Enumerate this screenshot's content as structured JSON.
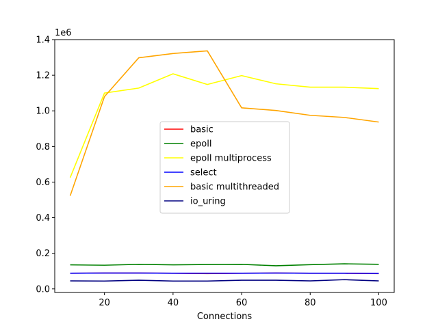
{
  "chart_data": {
    "type": "line",
    "title": "",
    "xlabel": "Connections",
    "ylabel": "",
    "y_offset_label": "1e6",
    "xlim": [
      5.5,
      104.5
    ],
    "ylim": [
      -20000,
      1400000
    ],
    "x_ticks": [
      20,
      40,
      60,
      80,
      100
    ],
    "x_tick_labels": [
      "20",
      "40",
      "60",
      "80",
      "100"
    ],
    "y_ticks": [
      0,
      200000,
      400000,
      600000,
      800000,
      1000000,
      1200000,
      1400000
    ],
    "y_tick_labels": [
      "0.0",
      "0.2",
      "0.4",
      "0.6",
      "0.8",
      "1.0",
      "1.2",
      "1.4"
    ],
    "grid": false,
    "legend_position": "center",
    "x": [
      10,
      20,
      30,
      40,
      50,
      60,
      70,
      80,
      90,
      100
    ],
    "series": [
      {
        "name": "basic",
        "color": "#ff0000",
        "values": [
          88000,
          89000,
          89000,
          88000,
          86000,
          88000,
          89000,
          88000,
          88000,
          86000
        ]
      },
      {
        "name": "epoll",
        "color": "#008000",
        "values": [
          135000,
          133000,
          138000,
          135000,
          137000,
          138000,
          130000,
          136000,
          141000,
          138000
        ]
      },
      {
        "name": "epoll multiprocess",
        "color": "#ffff00",
        "values": [
          625000,
          1100000,
          1128000,
          1208000,
          1148000,
          1198000,
          1152000,
          1133000,
          1133000,
          1125000
        ]
      },
      {
        "name": "select",
        "color": "#0000ff",
        "values": [
          88000,
          89000,
          89000,
          88000,
          88000,
          88000,
          89000,
          88000,
          88000,
          87000
        ]
      },
      {
        "name": "basic multithreaded",
        "color": "#ffa500",
        "values": [
          523000,
          1080000,
          1298000,
          1322000,
          1337000,
          1017000,
          1002000,
          975000,
          963000,
          937000
        ]
      },
      {
        "name": "io_uring",
        "color": "#000080",
        "values": [
          45000,
          44000,
          49000,
          44000,
          44000,
          49000,
          49000,
          45000,
          52000,
          45000
        ]
      }
    ]
  }
}
